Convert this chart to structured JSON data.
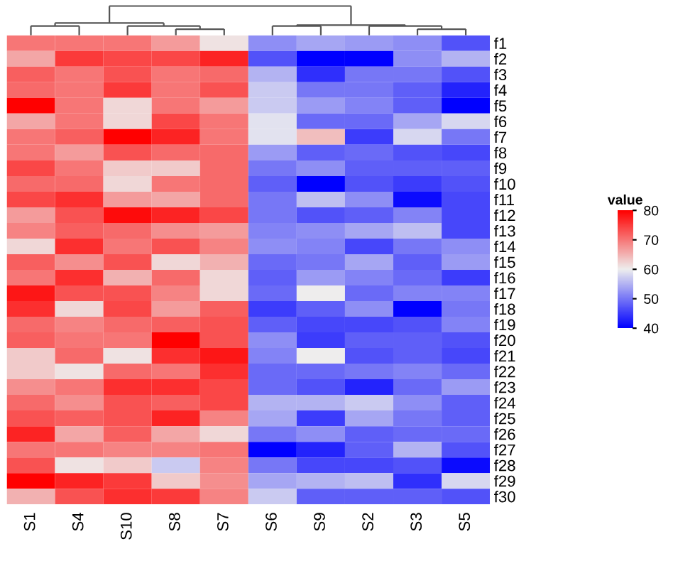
{
  "chart_data": {
    "type": "heatmap",
    "categories": [
      "S1",
      "S4",
      "S10",
      "S8",
      "S7",
      "S6",
      "S9",
      "S2",
      "S3",
      "S5"
    ],
    "y_categories": [
      "f1",
      "f2",
      "f3",
      "f4",
      "f5",
      "f6",
      "f7",
      "f8",
      "f9",
      "f10",
      "f11",
      "f12",
      "f13",
      "f14",
      "f15",
      "f16",
      "f17",
      "f18",
      "f19",
      "f20",
      "f21",
      "f22",
      "f23",
      "f24",
      "f25",
      "f26",
      "f27",
      "f28",
      "f29",
      "f30"
    ],
    "cells": [
      [
        70,
        70,
        70,
        67,
        61,
        52,
        54,
        53,
        52,
        47
      ],
      [
        66,
        75,
        74,
        74,
        77,
        47,
        40,
        40,
        52,
        55
      ],
      [
        72,
        70,
        73,
        70,
        71,
        55,
        44,
        50,
        50,
        47
      ],
      [
        71,
        70,
        75,
        70,
        73,
        57,
        50,
        50,
        48,
        43
      ],
      [
        80,
        70,
        62,
        70,
        67,
        57,
        53,
        51,
        48,
        40
      ],
      [
        66,
        70,
        62,
        74,
        70,
        59,
        49,
        49,
        54,
        58
      ],
      [
        70,
        72,
        80,
        77,
        70,
        59,
        64,
        45,
        58,
        50
      ],
      [
        70,
        67,
        73,
        71,
        71,
        53,
        48,
        49,
        47,
        46
      ],
      [
        74,
        70,
        63,
        63,
        71,
        50,
        52,
        48,
        48,
        48
      ],
      [
        71,
        71,
        62,
        70,
        71,
        48,
        40,
        47,
        45,
        47
      ],
      [
        74,
        76,
        67,
        66,
        71,
        50,
        56,
        52,
        41,
        46
      ],
      [
        67,
        73,
        79,
        77,
        74,
        50,
        47,
        48,
        51,
        46
      ],
      [
        69,
        72,
        71,
        68,
        67,
        51,
        52,
        54,
        56,
        46
      ],
      [
        62,
        76,
        70,
        73,
        69,
        52,
        51,
        46,
        50,
        52
      ],
      [
        72,
        68,
        73,
        62,
        65,
        49,
        50,
        54,
        48,
        53
      ],
      [
        70,
        76,
        65,
        71,
        62,
        48,
        53,
        51,
        49,
        45
      ],
      [
        78,
        73,
        73,
        69,
        62,
        49,
        60,
        49,
        51,
        51
      ],
      [
        76,
        62,
        74,
        67,
        72,
        45,
        48,
        52,
        40,
        50
      ],
      [
        71,
        69,
        71,
        72,
        73,
        48,
        46,
        46,
        47,
        51
      ],
      [
        72,
        70,
        70,
        80,
        73,
        52,
        45,
        48,
        48,
        47
      ],
      [
        63,
        71,
        61,
        76,
        78,
        51,
        60,
        47,
        48,
        46
      ],
      [
        63,
        61,
        71,
        70,
        76,
        49,
        49,
        50,
        51,
        49
      ],
      [
        68,
        70,
        76,
        76,
        74,
        49,
        47,
        43,
        49,
        53
      ],
      [
        71,
        68,
        73,
        72,
        74,
        55,
        55,
        57,
        52,
        48
      ],
      [
        73,
        72,
        73,
        77,
        69,
        54,
        45,
        54,
        50,
        48
      ],
      [
        77,
        66,
        72,
        66,
        62,
        50,
        52,
        48,
        49,
        49
      ],
      [
        70,
        70,
        69,
        69,
        70,
        40,
        43,
        48,
        55,
        47
      ],
      [
        73,
        61,
        63,
        57,
        69,
        50,
        46,
        46,
        47,
        41
      ],
      [
        80,
        77,
        75,
        63,
        68,
        54,
        55,
        56,
        44,
        58
      ],
      [
        65,
        73,
        76,
        75,
        69,
        57,
        48,
        48,
        48,
        47
      ]
    ],
    "clabel": "value",
    "clim": [
      40,
      80
    ],
    "cticks": [
      40,
      50,
      60,
      70,
      80
    ],
    "colors": [
      "#0000ff",
      "#eeeeee",
      "#ff0000"
    ]
  }
}
